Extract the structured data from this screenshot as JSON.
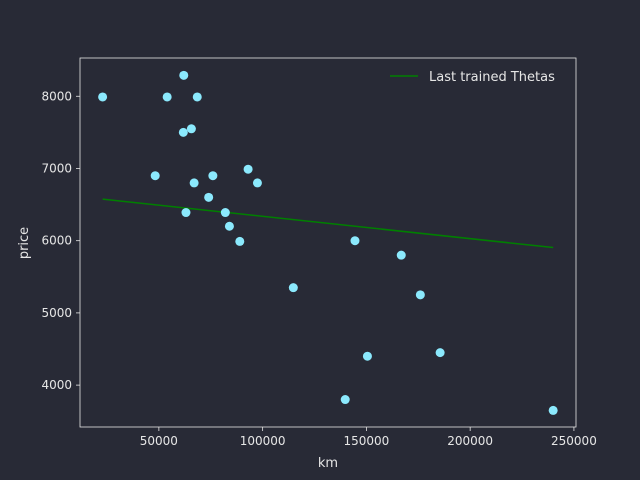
{
  "chart_data": {
    "type": "scatter",
    "title": "",
    "xlabel": "km",
    "ylabel": "price",
    "xlim": [
      12000,
      251000
    ],
    "ylim": [
      3420,
      8530
    ],
    "xticks": [
      50000,
      100000,
      150000,
      200000,
      250000
    ],
    "xtick_labels": [
      "50000",
      "100000",
      "150000",
      "200000",
      "250000"
    ],
    "yticks": [
      4000,
      5000,
      6000,
      7000,
      8000
    ],
    "ytick_labels": [
      "4000",
      "5000",
      "6000",
      "7000",
      "8000"
    ],
    "grid": false,
    "legend_position": "top-right",
    "colors": {
      "background": "#282a36",
      "axes": "#e6e6e6",
      "points": "#8be9fd",
      "line": "#008000"
    },
    "series": [
      {
        "kind": "scatter",
        "x": [
          22899,
          48235,
          54000,
          61789,
          62000,
          63060,
          65674,
          67000,
          68500,
          74000,
          76025,
          82029,
          84000,
          89000,
          93000,
          97500,
          114800,
          139800,
          144500,
          150500,
          166800,
          176000,
          185530,
          240000
        ],
        "y": [
          7990,
          6900,
          7990,
          7500,
          8290,
          6390,
          7550,
          6800,
          7990,
          6600,
          6900,
          6390,
          6200,
          5990,
          6990,
          6800,
          5350,
          3800,
          6000,
          4400,
          5800,
          5250,
          4450,
          3650
        ]
      },
      {
        "name": "Last trained Thetas",
        "kind": "line",
        "x": [
          22899,
          240000
        ],
        "y": [
          6575,
          5905
        ]
      }
    ]
  }
}
